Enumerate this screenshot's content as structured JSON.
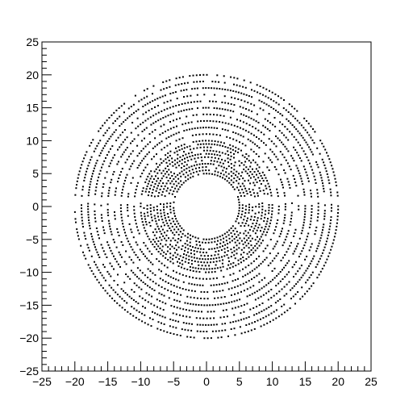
{
  "chart_data": {
    "type": "scatter",
    "title": "",
    "xlabel": "",
    "ylabel": "",
    "xlim": [
      -25,
      25
    ],
    "ylim": [
      -25,
      25
    ],
    "grid": false,
    "xticks": [
      "−25",
      "−20",
      "−15",
      "−10",
      "−5",
      "0",
      "5",
      "10",
      "15",
      "20",
      "25"
    ],
    "yticks": [
      "25",
      "20",
      "15",
      "10",
      "5",
      "0",
      "−5",
      "−10",
      "−15",
      "−20",
      "−25"
    ],
    "xtick_values": [
      -25,
      -20,
      -15,
      -10,
      -5,
      0,
      5,
      10,
      15,
      20,
      25
    ],
    "ytick_values": [
      25,
      20,
      15,
      10,
      5,
      0,
      -5,
      -10,
      -15,
      -20,
      -25
    ],
    "marker_color": "#000000",
    "pattern": "concentric dotted rings of points around the origin",
    "ring_radii": [
      5,
      5.5,
      6,
      6.5,
      7,
      7.5,
      8,
      8.5,
      9,
      9.5,
      10,
      11,
      12,
      13,
      14,
      15,
      16,
      17,
      18,
      19,
      20
    ],
    "gap_band_y": [
      0.5,
      1.5
    ],
    "gap_band_x_abs_min": 5
  }
}
